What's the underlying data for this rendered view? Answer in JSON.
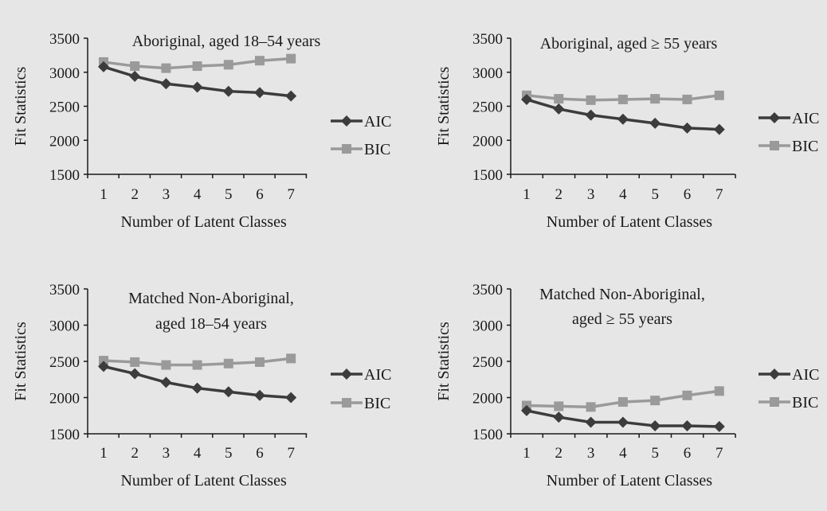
{
  "chart_data": [
    {
      "type": "line",
      "title_lines": [
        "Aboriginal, aged 18–54 years"
      ],
      "xlabel": "Number of  Latent Classes",
      "ylabel": "Fit Statistics",
      "x": [
        1,
        2,
        3,
        4,
        5,
        6,
        7
      ],
      "ylim": [
        1500,
        3500
      ],
      "yticks": [
        1500,
        2000,
        2500,
        3000,
        3500
      ],
      "grid": false,
      "legend_position": "right",
      "series": [
        {
          "name": "AIC",
          "color": "#3c3c3c",
          "marker": "diamond",
          "values": [
            3080,
            2940,
            2830,
            2780,
            2720,
            2700,
            2650
          ]
        },
        {
          "name": "BIC",
          "color": "#9a9a9a",
          "marker": "square",
          "values": [
            3150,
            3090,
            3060,
            3090,
            3110,
            3170,
            3200
          ]
        }
      ]
    },
    {
      "type": "line",
      "title_lines": [
        "Aboriginal, aged ≥ 55 years"
      ],
      "xlabel": "Number of  Latent Classes",
      "ylabel": "Fit Statistics",
      "x": [
        1,
        2,
        3,
        4,
        5,
        6,
        7
      ],
      "ylim": [
        1500,
        3500
      ],
      "yticks": [
        1500,
        2000,
        2500,
        3000,
        3500
      ],
      "grid": false,
      "legend_position": "right",
      "series": [
        {
          "name": "AIC",
          "color": "#3c3c3c",
          "marker": "diamond",
          "values": [
            2600,
            2460,
            2370,
            2310,
            2250,
            2180,
            2160
          ]
        },
        {
          "name": "BIC",
          "color": "#9a9a9a",
          "marker": "square",
          "values": [
            2660,
            2610,
            2590,
            2600,
            2610,
            2600,
            2660
          ]
        }
      ]
    },
    {
      "type": "line",
      "title_lines": [
        "Matched Non-Aboriginal,",
        "aged 18–54 years"
      ],
      "xlabel": "Number of  Latent Classes",
      "ylabel": "Fit Statistics",
      "x": [
        1,
        2,
        3,
        4,
        5,
        6,
        7
      ],
      "ylim": [
        1500,
        3500
      ],
      "yticks": [
        1500,
        2000,
        2500,
        3000,
        3500
      ],
      "grid": false,
      "legend_position": "right",
      "series": [
        {
          "name": "AIC",
          "color": "#3c3c3c",
          "marker": "diamond",
          "values": [
            2430,
            2330,
            2210,
            2130,
            2080,
            2030,
            2000
          ]
        },
        {
          "name": "BIC",
          "color": "#9a9a9a",
          "marker": "square",
          "values": [
            2510,
            2490,
            2450,
            2450,
            2470,
            2490,
            2540
          ]
        }
      ]
    },
    {
      "type": "line",
      "title_lines": [
        "Matched Non-Aboriginal,",
        "aged ≥ 55 years"
      ],
      "xlabel": "Number of  Latent Classes",
      "ylabel": "Fit Statistics",
      "x": [
        1,
        2,
        3,
        4,
        5,
        6,
        7
      ],
      "ylim": [
        1500,
        3500
      ],
      "yticks": [
        1500,
        2000,
        2500,
        3000,
        3500
      ],
      "grid": false,
      "legend_position": "right",
      "series": [
        {
          "name": "AIC",
          "color": "#3c3c3c",
          "marker": "diamond",
          "values": [
            1820,
            1730,
            1660,
            1660,
            1610,
            1610,
            1600
          ]
        },
        {
          "name": "BIC",
          "color": "#9a9a9a",
          "marker": "square",
          "values": [
            1890,
            1880,
            1870,
            1940,
            1960,
            2030,
            2090
          ]
        }
      ]
    }
  ]
}
